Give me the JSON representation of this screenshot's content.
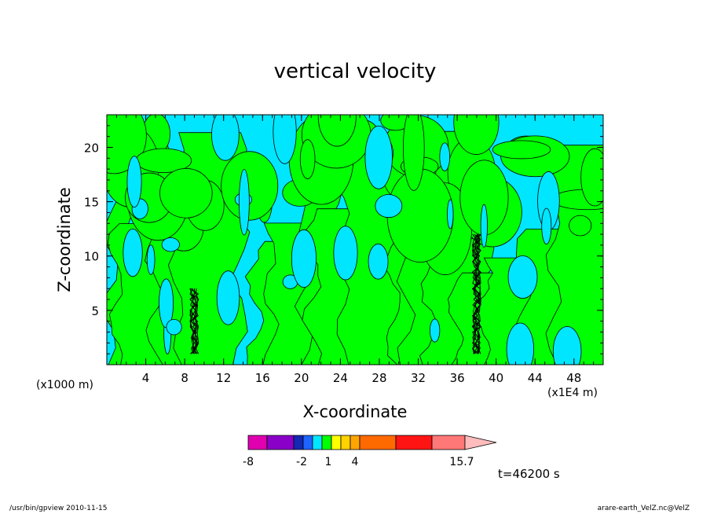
{
  "chart_data": {
    "type": "heatmap",
    "title": "vertical velocity",
    "xlabel": "X-coordinate",
    "ylabel": "Z-coordinate",
    "x_scale_note": "(x1000 m)",
    "x_extra_note": "(x1E4 m)",
    "x_ticks": [
      "4",
      "8",
      "12",
      "16",
      "20",
      "24",
      "28",
      "32",
      "36",
      "40",
      "44",
      "48"
    ],
    "y_ticks": [
      "5",
      "10",
      "15",
      "20"
    ],
    "xlim": [
      0,
      51
    ],
    "ylim": [
      0,
      23
    ],
    "colorbar": {
      "labels": [
        "-8",
        "-2",
        "1",
        "4",
        "15.7"
      ],
      "colors": [
        "#e000b0",
        "#8a00c8",
        "#1428b4",
        "#1e64ff",
        "#00e6ff",
        "#00ff00",
        "#ffff00",
        "#ffd200",
        "#ffa500",
        "#ff6a00",
        "#ff1414",
        "#ff7878",
        "#ffbcbc"
      ]
    },
    "field_colors": {
      "negative": "#00e6ff",
      "positive": "#00ff00"
    }
  },
  "annotations": {
    "time": "t=46200 s",
    "footer_left": "/usr/bin/gpview   2010-11-15",
    "footer_right": "arare-earth_VelZ.nc@VelZ"
  }
}
